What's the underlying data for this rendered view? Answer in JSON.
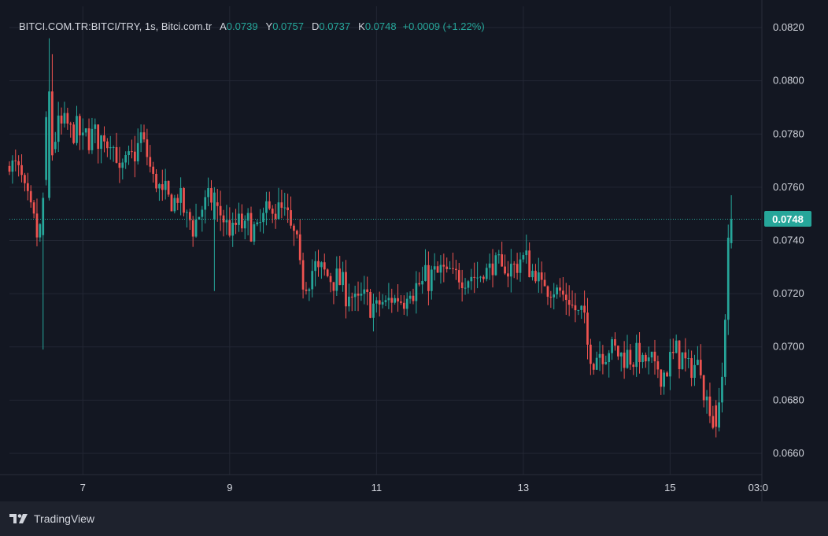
{
  "legend": {
    "symbol": "BITCI.COM.TR:BITCI/TRY, 1s, Bitci.com.tr",
    "open_label": "A",
    "open_value": "0.0739",
    "high_label": "Y",
    "high_value": "0.0757",
    "low_label": "D",
    "low_value": "0.0737",
    "close_label": "K",
    "close_value": "0.0748",
    "change": "+0.0009 (+1.22%)"
  },
  "last_price_tag": "0.0748",
  "brand": {
    "name": "TradingView",
    "logo_icon": "tradingview-logo-icon"
  },
  "colors": {
    "background": "#131722",
    "grid": "#232734",
    "up": "#26a69a",
    "down": "#ef5350",
    "axis_text": "#d1d4dc",
    "footer": "#1e222d"
  },
  "chart_data": {
    "type": "candlestick",
    "y_axis": {
      "ticks": [
        "0.0820",
        "0.0800",
        "0.0780",
        "0.0760",
        "0.0740",
        "0.0720",
        "0.0700",
        "0.0680",
        "0.0660"
      ],
      "range": [
        0.0652,
        0.0828
      ],
      "side": "right"
    },
    "x_axis": {
      "ticks": [
        "7",
        "9",
        "11",
        "13",
        "15",
        "03:0"
      ],
      "range_days": [
        6.0,
        16.25
      ]
    },
    "last_close": 0.0748,
    "keyframes": [
      [
        6.0,
        0.0768
      ],
      [
        6.12,
        0.0767
      ],
      [
        6.25,
        0.076
      ],
      [
        6.32,
        0.0755
      ],
      [
        6.4,
        0.0742
      ],
      [
        6.45,
        0.0742
      ],
      [
        6.5,
        0.0762
      ],
      [
        6.56,
        0.079
      ],
      [
        6.62,
        0.0775
      ],
      [
        6.7,
        0.0782
      ],
      [
        6.85,
        0.0783
      ],
      [
        7.05,
        0.0779
      ],
      [
        7.3,
        0.0779
      ],
      [
        7.45,
        0.0776
      ],
      [
        7.55,
        0.0765
      ],
      [
        7.7,
        0.077
      ],
      [
        7.85,
        0.078
      ],
      [
        8.0,
        0.0762
      ],
      [
        8.15,
        0.0757
      ],
      [
        8.35,
        0.0755
      ],
      [
        8.55,
        0.0745
      ],
      [
        8.75,
        0.0758
      ],
      [
        8.92,
        0.075
      ],
      [
        9.05,
        0.0745
      ],
      [
        9.25,
        0.0746
      ],
      [
        9.45,
        0.0745
      ],
      [
        9.6,
        0.0752
      ],
      [
        9.75,
        0.075
      ],
      [
        9.85,
        0.0747
      ],
      [
        9.95,
        0.0738
      ],
      [
        10.05,
        0.0724
      ],
      [
        10.2,
        0.073
      ],
      [
        10.35,
        0.0727
      ],
      [
        10.5,
        0.0725
      ],
      [
        10.65,
        0.072
      ],
      [
        10.8,
        0.0718
      ],
      [
        11.0,
        0.0716
      ],
      [
        11.2,
        0.0717
      ],
      [
        11.4,
        0.0718
      ],
      [
        11.55,
        0.0722
      ],
      [
        11.7,
        0.0725
      ],
      [
        11.9,
        0.0728
      ],
      [
        12.15,
        0.0728
      ],
      [
        12.4,
        0.0726
      ],
      [
        12.65,
        0.0729
      ],
      [
        12.85,
        0.0729
      ],
      [
        13.0,
        0.0733
      ],
      [
        13.1,
        0.0732
      ],
      [
        13.25,
        0.0724
      ],
      [
        13.45,
        0.0723
      ],
      [
        13.6,
        0.0719
      ],
      [
        13.75,
        0.0714
      ],
      [
        13.85,
        0.0712
      ],
      [
        13.95,
        0.0695
      ],
      [
        14.1,
        0.0699
      ],
      [
        14.3,
        0.0698
      ],
      [
        14.55,
        0.0696
      ],
      [
        14.75,
        0.0695
      ],
      [
        14.95,
        0.069
      ],
      [
        15.1,
        0.0698
      ],
      [
        15.3,
        0.0694
      ],
      [
        15.45,
        0.0692
      ],
      [
        15.58,
        0.0676
      ],
      [
        15.65,
        0.0669
      ],
      [
        15.72,
        0.0675
      ],
      [
        15.78,
        0.07
      ],
      [
        15.82,
        0.0738
      ],
      [
        15.86,
        0.0748
      ]
    ],
    "anchors": [
      {
        "x": 6.47,
        "open": 0.0742,
        "high": 0.0758,
        "low": 0.0699,
        "close": 0.0756
      },
      {
        "x": 6.54,
        "open": 0.0756,
        "high": 0.0816,
        "low": 0.0755,
        "close": 0.0796
      },
      {
        "x": 6.6,
        "open": 0.0796,
        "high": 0.081,
        "low": 0.077,
        "close": 0.0772
      },
      {
        "x": 8.78,
        "open": 0.0748,
        "high": 0.076,
        "low": 0.0721,
        "close": 0.0758
      },
      {
        "x": 15.64,
        "open": 0.0678,
        "high": 0.068,
        "low": 0.0666,
        "close": 0.067
      },
      {
        "x": 15.84,
        "open": 0.0739,
        "high": 0.0757,
        "low": 0.0737,
        "close": 0.0748
      }
    ]
  }
}
